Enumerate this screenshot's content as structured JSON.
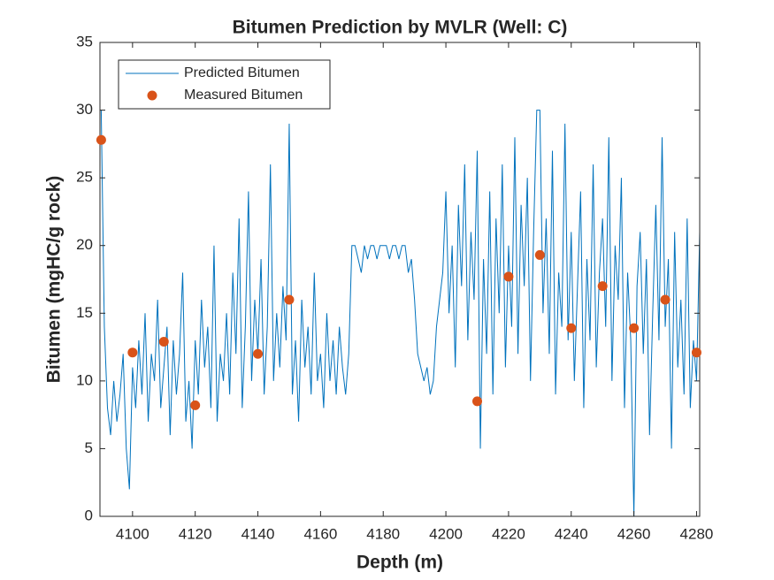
{
  "chart_data": {
    "type": "line",
    "title": "Bitumen Prediction by MVLR (Well: C)",
    "xlabel": "Depth (m)",
    "ylabel": "Bitumen (mgHC/g rock)",
    "xlim": [
      4089.6,
      4281
    ],
    "ylim": [
      0,
      35
    ],
    "xticks": [
      4100,
      4120,
      4140,
      4160,
      4180,
      4200,
      4220,
      4240,
      4260,
      4280
    ],
    "yticks": [
      0,
      5,
      10,
      15,
      20,
      25,
      30,
      35
    ],
    "legend": "upper left",
    "series": [
      {
        "name": "Predicted Bitumen",
        "color": "#0072bd",
        "type": "line",
        "x": [
          4090,
          4091,
          4092,
          4093,
          4094,
          4095,
          4096,
          4097,
          4098,
          4099,
          4100,
          4101,
          4102,
          4103,
          4104,
          4105,
          4106,
          4107,
          4108,
          4109,
          4110,
          4111,
          4112,
          4113,
          4114,
          4115,
          4116,
          4117,
          4118,
          4119,
          4120,
          4121,
          4122,
          4123,
          4124,
          4125,
          4126,
          4127,
          4128,
          4129,
          4130,
          4131,
          4132,
          4133,
          4134,
          4135,
          4136,
          4137,
          4138,
          4139,
          4140,
          4141,
          4142,
          4143,
          4144,
          4145,
          4146,
          4147,
          4148,
          4149,
          4150,
          4151,
          4152,
          4153,
          4154,
          4155,
          4156,
          4157,
          4158,
          4159,
          4160,
          4161,
          4162,
          4163,
          4164,
          4165,
          4166,
          4167,
          4168,
          4169,
          4170,
          4171,
          4172,
          4173,
          4174,
          4175,
          4176,
          4177,
          4178,
          4179,
          4180,
          4181,
          4182,
          4183,
          4184,
          4185,
          4186,
          4187,
          4188,
          4189,
          4190,
          4191,
          4192,
          4193,
          4194,
          4195,
          4196,
          4197,
          4198,
          4199,
          4200,
          4201,
          4202,
          4203,
          4204,
          4205,
          4206,
          4207,
          4208,
          4209,
          4210,
          4211,
          4212,
          4213,
          4214,
          4215,
          4216,
          4217,
          4218,
          4219,
          4220,
          4221,
          4222,
          4223,
          4224,
          4225,
          4226,
          4227,
          4228,
          4229,
          4230,
          4231,
          4232,
          4233,
          4234,
          4235,
          4236,
          4237,
          4238,
          4239,
          4240,
          4241,
          4242,
          4243,
          4244,
          4245,
          4246,
          4247,
          4248,
          4249,
          4250,
          4251,
          4252,
          4253,
          4254,
          4255,
          4256,
          4257,
          4258,
          4259,
          4260,
          4261,
          4262,
          4263,
          4264,
          4265,
          4266,
          4267,
          4268,
          4269,
          4270,
          4271,
          4272,
          4273,
          4274,
          4275,
          4276,
          4277,
          4278,
          4279,
          4280,
          4281
        ],
        "values": [
          30,
          14,
          8,
          6,
          10,
          7,
          9,
          12,
          5,
          2,
          11,
          8,
          13,
          9,
          15,
          7,
          12,
          10,
          16,
          8,
          11,
          14,
          6,
          13,
          9,
          12,
          18,
          7,
          10,
          5,
          13,
          9,
          16,
          11,
          14,
          8,
          20,
          7,
          12,
          10,
          15,
          9,
          18,
          12,
          22,
          8,
          14,
          24,
          10,
          16,
          12,
          19,
          9,
          14,
          26,
          10,
          15,
          11,
          17,
          13,
          29,
          9,
          13,
          7,
          16,
          11,
          14,
          9,
          18,
          10,
          12,
          8,
          15,
          10,
          13,
          9,
          14,
          11,
          9,
          12,
          20,
          20,
          19,
          18,
          20,
          19,
          20,
          20,
          19,
          20,
          20,
          20,
          19,
          20,
          20,
          19,
          20,
          20,
          18,
          19,
          16,
          12,
          11,
          10,
          11,
          9,
          10,
          14,
          16,
          18,
          24,
          15,
          20,
          11,
          23,
          17,
          26,
          13,
          21,
          16,
          27,
          5,
          19,
          12,
          24,
          9,
          22,
          15,
          26,
          11,
          20,
          14,
          28,
          12,
          23,
          17,
          25,
          10,
          21,
          30,
          30,
          15,
          22,
          12,
          27,
          9,
          18,
          14,
          29,
          13,
          21,
          10,
          17,
          24,
          8,
          19,
          13,
          26,
          11,
          18,
          22,
          14,
          28,
          10,
          20,
          16,
          25,
          8,
          18,
          13,
          0,
          17,
          21,
          12,
          19,
          6,
          15,
          23,
          13,
          28,
          14,
          19,
          5,
          21,
          11,
          16,
          9,
          22,
          8,
          13,
          10,
          21
        ]
      },
      {
        "name": "Measured Bitumen",
        "color": "#d95319",
        "type": "scatter",
        "x": [
          4090,
          4100,
          4110,
          4120,
          4140,
          4150,
          4210,
          4220,
          4230,
          4240,
          4250,
          4260,
          4270,
          4280
        ],
        "values": [
          27.8,
          12.1,
          12.9,
          8.2,
          12.0,
          16.0,
          8.5,
          17.7,
          19.3,
          13.9,
          17.0,
          13.9,
          16.0,
          12.1
        ]
      }
    ]
  }
}
